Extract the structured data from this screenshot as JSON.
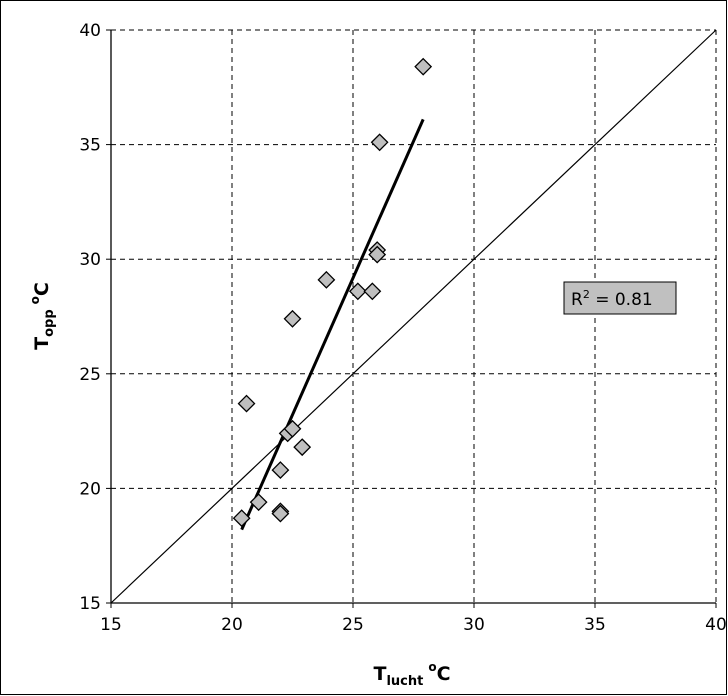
{
  "chart_data": {
    "type": "scatter",
    "title": "",
    "xlabel": {
      "main": "T",
      "sub": "lucht",
      "unit_sup": "o",
      "unit": "C"
    },
    "ylabel": {
      "main": "T",
      "sub": "opp",
      "unit_sup": "o",
      "unit": "C"
    },
    "xlim": [
      15,
      40
    ],
    "ylim": [
      15,
      40
    ],
    "xticks": [
      15,
      20,
      25,
      30,
      35,
      40
    ],
    "yticks": [
      15,
      20,
      25,
      30,
      35,
      40
    ],
    "grid": true,
    "series": [
      {
        "marker": "diamond",
        "color": "#bfbfbf",
        "points": [
          {
            "x": 20.4,
            "y": 18.7
          },
          {
            "x": 20.6,
            "y": 23.7
          },
          {
            "x": 21.1,
            "y": 19.4
          },
          {
            "x": 22.0,
            "y": 19.0
          },
          {
            "x": 22.0,
            "y": 18.9
          },
          {
            "x": 22.0,
            "y": 20.8
          },
          {
            "x": 22.3,
            "y": 22.4
          },
          {
            "x": 22.5,
            "y": 22.6
          },
          {
            "x": 22.9,
            "y": 21.8
          },
          {
            "x": 22.5,
            "y": 27.4
          },
          {
            "x": 23.9,
            "y": 29.1
          },
          {
            "x": 25.2,
            "y": 28.6
          },
          {
            "x": 25.8,
            "y": 28.6
          },
          {
            "x": 26.0,
            "y": 30.4
          },
          {
            "x": 26.0,
            "y": 30.2
          },
          {
            "x": 26.1,
            "y": 35.1
          },
          {
            "x": 27.9,
            "y": 38.4
          }
        ]
      }
    ],
    "reference_line": {
      "from": [
        15,
        15
      ],
      "to": [
        40,
        40
      ]
    },
    "trendline": {
      "from": [
        20.4,
        18.2
      ],
      "to": [
        27.9,
        36.1
      ]
    },
    "annotation": {
      "label": "R",
      "sup": "2",
      "value": " = 0.81"
    }
  }
}
